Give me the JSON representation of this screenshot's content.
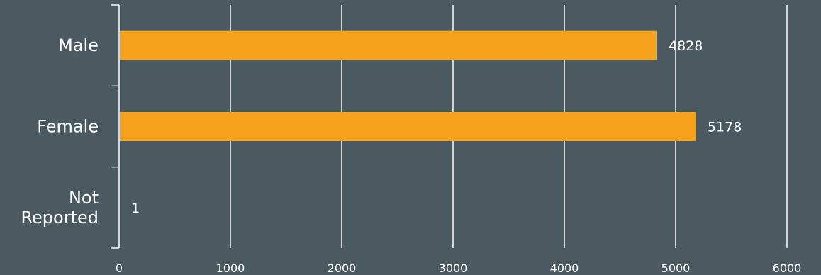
{
  "chart_data": {
    "type": "bar",
    "orientation": "horizontal",
    "categories": [
      [
        "Male"
      ],
      [
        "Female"
      ],
      [
        "Not",
        "Reported"
      ]
    ],
    "values": [
      4828,
      5178,
      1
    ],
    "value_labels": [
      "4828",
      "5178",
      "1"
    ],
    "xlim": [
      0,
      6000
    ],
    "xticks": [
      0,
      1000,
      2000,
      3000,
      4000,
      5000,
      6000
    ],
    "xtick_labels": [
      "0",
      "1000",
      "2000",
      "3000",
      "4000",
      "5000",
      "6000"
    ],
    "grid": true,
    "legend": "none"
  },
  "colors": {
    "background": "#4a5a60",
    "bar": "#f5a31e",
    "text": "#ffffff",
    "grid": "#ffffff"
  }
}
